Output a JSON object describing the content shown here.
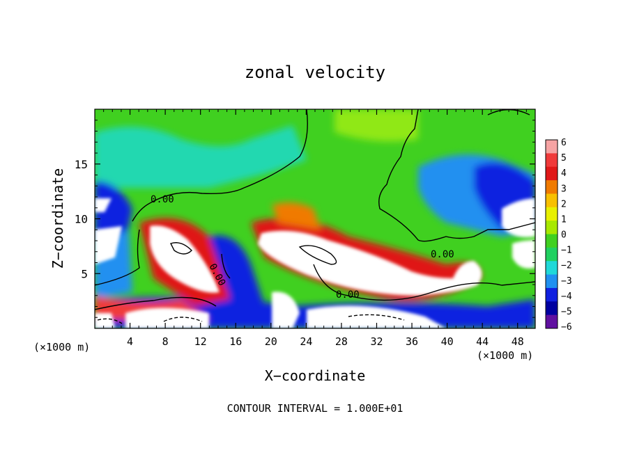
{
  "chart_data": {
    "type": "heatmap",
    "title": "zonal velocity",
    "xlabel": "X−coordinate",
    "ylabel": "Z−coordinate",
    "x_unit_left": "(×1000 m)",
    "x_unit_right": "(×1000 m)",
    "xlim": [
      0,
      50
    ],
    "ylim": [
      0,
      20
    ],
    "x_ticks": [
      4,
      8,
      12,
      16,
      20,
      24,
      28,
      32,
      36,
      40,
      44,
      48
    ],
    "y_ticks": [
      5,
      10,
      15
    ],
    "contour_label": "0.00",
    "footer": "CONTOUR INTERVAL = 1.000E+01",
    "colorbar": {
      "ticks": [
        "6",
        "5",
        "4",
        "3",
        "2",
        "1",
        "0",
        "−1",
        "−2",
        "−3",
        "−4",
        "−5",
        "−6"
      ],
      "colors": [
        "#f6a3a3",
        "#f03a3a",
        "#e01818",
        "#f07a00",
        "#f8c000",
        "#e8f000",
        "#a8e800",
        "#40d020",
        "#20d060",
        "#20d8d8",
        "#2090f0",
        "#1020e0",
        "#0000a0",
        "#6010a0"
      ]
    },
    "white_regions_note": "values outside colour range shown white",
    "range": [
      -6,
      6
    ]
  }
}
